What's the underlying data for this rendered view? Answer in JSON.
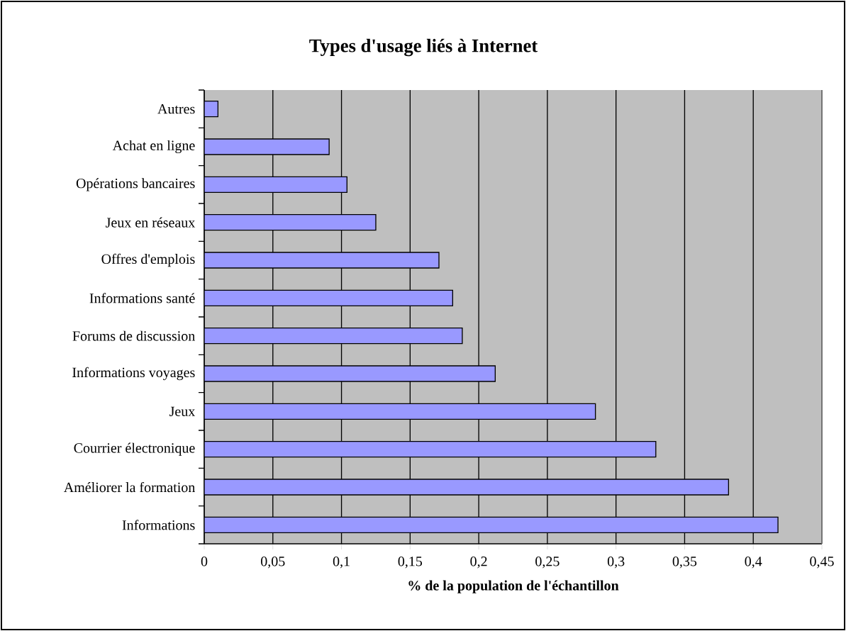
{
  "chart_data": {
    "type": "bar",
    "orientation": "horizontal",
    "title": "Types d'usage liés à Internet",
    "xlabel": "% de la population de l'échantillon",
    "categories": [
      "Autres",
      "Achat en ligne",
      "Opérations bancaires",
      "Jeux en réseaux",
      "Offres d'emplois",
      "Informations santé",
      "Forums de discussion",
      "Informations voyages",
      "Jeux",
      "Courrier électronique",
      "Améliorer la formation",
      "Informations"
    ],
    "values": [
      0.01,
      0.091,
      0.104,
      0.125,
      0.171,
      0.181,
      0.188,
      0.212,
      0.285,
      0.329,
      0.382,
      0.418
    ],
    "color": "#9999ff",
    "xlim": [
      0,
      0.45
    ],
    "xticks": [
      {
        "value": 0,
        "label": "0"
      },
      {
        "value": 0.05,
        "label": "0,05"
      },
      {
        "value": 0.1,
        "label": "0,1"
      },
      {
        "value": 0.15,
        "label": "0,15"
      },
      {
        "value": 0.2,
        "label": "0,2"
      },
      {
        "value": 0.25,
        "label": "0,25"
      },
      {
        "value": 0.3,
        "label": "0,3"
      },
      {
        "value": 0.35,
        "label": "0,35"
      },
      {
        "value": 0.4,
        "label": "0,4"
      },
      {
        "value": 0.45,
        "label": "0,45"
      }
    ],
    "grid": "x"
  }
}
